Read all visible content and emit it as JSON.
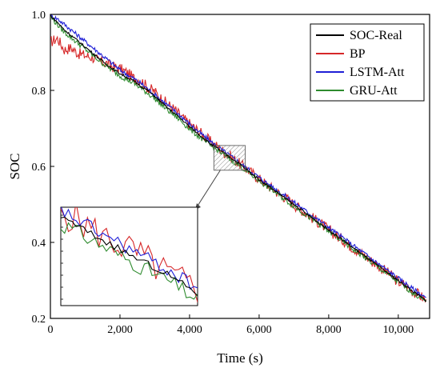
{
  "chart_data": {
    "type": "line",
    "xlabel": "Time (s)",
    "ylabel": "SOC",
    "xlim": [
      0,
      10900
    ],
    "ylim": [
      0.2,
      1.0
    ],
    "xticks": [
      0,
      2000,
      4000,
      6000,
      8000,
      10000
    ],
    "xtick_labels": [
      "0",
      "2,000",
      "4,000",
      "6,000",
      "8,000",
      "10,000"
    ],
    "yticks": [
      0.2,
      0.4,
      0.6,
      0.8,
      1.0
    ],
    "ytick_labels": [
      "0.2",
      "0.4",
      "0.6",
      "0.8",
      "1.0"
    ],
    "legend_position": "top-right",
    "x": [
      0,
      200,
      400,
      600,
      800,
      1000,
      1200,
      1400,
      1600,
      1800,
      2000,
      2200,
      2400,
      2600,
      2800,
      3000,
      3200,
      3400,
      3600,
      3800,
      4000,
      4200,
      4400,
      4600,
      4800,
      5000,
      5200,
      5400,
      5600,
      5800,
      6000,
      6200,
      6400,
      6600,
      6800,
      7000,
      7200,
      7400,
      7600,
      7800,
      8000,
      8200,
      8400,
      8600,
      8800,
      9000,
      9200,
      9400,
      9600,
      9800,
      10000,
      10200,
      10400,
      10600,
      10800
    ],
    "series": [
      {
        "name": "SOC-Real",
        "color": "#000000",
        "values": [
          0.997,
          0.98,
          0.96,
          0.945,
          0.93,
          0.915,
          0.9,
          0.885,
          0.87,
          0.857,
          0.845,
          0.835,
          0.825,
          0.812,
          0.8,
          0.785,
          0.768,
          0.752,
          0.738,
          0.722,
          0.705,
          0.69,
          0.675,
          0.66,
          0.648,
          0.635,
          0.622,
          0.61,
          0.595,
          0.58,
          0.566,
          0.553,
          0.54,
          0.527,
          0.513,
          0.5,
          0.487,
          0.473,
          0.46,
          0.447,
          0.433,
          0.42,
          0.407,
          0.393,
          0.38,
          0.367,
          0.353,
          0.34,
          0.327,
          0.313,
          0.3,
          0.287,
          0.273,
          0.26,
          0.247
        ]
      },
      {
        "name": "BP",
        "color": "#d62728",
        "values": [
          0.93,
          0.94,
          0.91,
          0.915,
          0.9,
          0.895,
          0.89,
          0.88,
          0.875,
          0.865,
          0.86,
          0.85,
          0.835,
          0.83,
          0.81,
          0.8,
          0.78,
          0.765,
          0.75,
          0.73,
          0.715,
          0.7,
          0.685,
          0.668,
          0.655,
          0.64,
          0.628,
          0.612,
          0.6,
          0.585,
          0.57,
          0.556,
          0.543,
          0.53,
          0.518,
          0.503,
          0.49,
          0.476,
          0.463,
          0.45,
          0.436,
          0.422,
          0.41,
          0.395,
          0.383,
          0.37,
          0.356,
          0.343,
          0.33,
          0.315,
          0.3,
          0.29,
          0.275,
          0.265,
          0.25
        ]
      },
      {
        "name": "LSTM-Att",
        "color": "#1f1fd6",
        "values": [
          0.997,
          0.99,
          0.975,
          0.96,
          0.945,
          0.93,
          0.915,
          0.9,
          0.885,
          0.87,
          0.855,
          0.843,
          0.832,
          0.82,
          0.805,
          0.79,
          0.775,
          0.76,
          0.745,
          0.73,
          0.713,
          0.697,
          0.682,
          0.667,
          0.653,
          0.64,
          0.627,
          0.614,
          0.6,
          0.586,
          0.572,
          0.559,
          0.546,
          0.533,
          0.52,
          0.507,
          0.494,
          0.48,
          0.467,
          0.454,
          0.44,
          0.427,
          0.414,
          0.4,
          0.387,
          0.374,
          0.36,
          0.347,
          0.334,
          0.32,
          0.307,
          0.294,
          0.28,
          0.268,
          0.255
        ]
      },
      {
        "name": "GRU-Att",
        "color": "#2e8b2e",
        "values": [
          0.995,
          0.975,
          0.955,
          0.94,
          0.925,
          0.91,
          0.895,
          0.88,
          0.866,
          0.853,
          0.84,
          0.83,
          0.82,
          0.807,
          0.794,
          0.78,
          0.763,
          0.747,
          0.733,
          0.717,
          0.7,
          0.685,
          0.67,
          0.656,
          0.644,
          0.631,
          0.618,
          0.606,
          0.591,
          0.577,
          0.563,
          0.55,
          0.537,
          0.524,
          0.51,
          0.497,
          0.484,
          0.47,
          0.457,
          0.444,
          0.43,
          0.417,
          0.404,
          0.39,
          0.377,
          0.364,
          0.35,
          0.337,
          0.324,
          0.31,
          0.297,
          0.284,
          0.27,
          0.257,
          0.244
        ]
      }
    ],
    "zoom_region": {
      "x_range": [
        4700,
        5600
      ],
      "y_range": [
        0.59,
        0.655
      ]
    }
  }
}
